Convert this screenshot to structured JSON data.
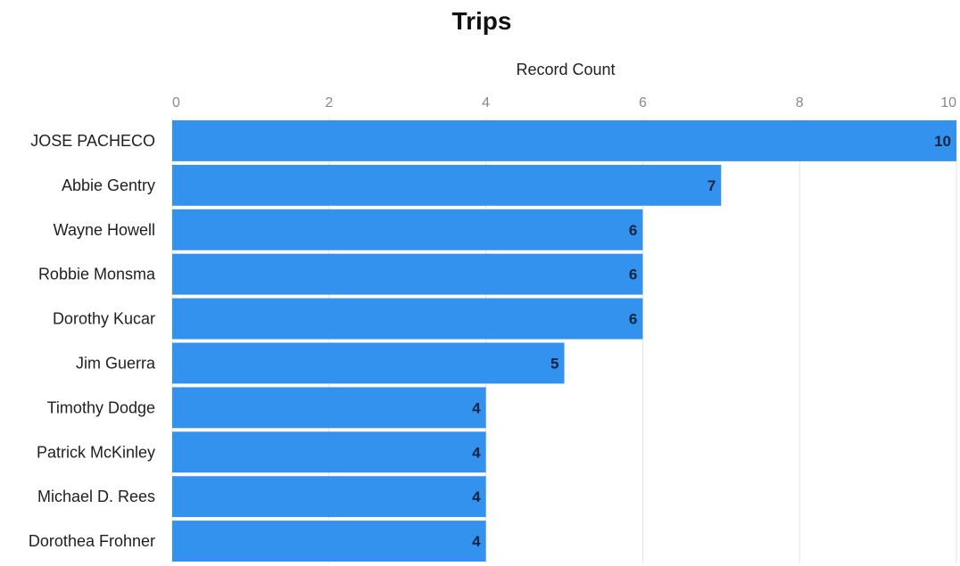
{
  "chart_data": {
    "type": "bar",
    "orientation": "horizontal",
    "title": "Trips",
    "xlabel": "Record Count",
    "ylabel": "",
    "xlim": [
      0,
      10
    ],
    "x_ticks": [
      "0",
      "2",
      "4",
      "6",
      "8",
      "10"
    ],
    "x_tick_values": [
      0,
      2,
      4,
      6,
      8,
      10
    ],
    "grid": true,
    "bar_color": "#3392ee",
    "categories": [
      "JOSE PACHECO",
      "Abbie Gentry",
      "Wayne Howell",
      "Robbie Monsma",
      "Dorothy Kucar",
      "Jim Guerra",
      "Timothy Dodge",
      "Patrick McKinley",
      "Michael D. Rees",
      "Dorothea Frohner"
    ],
    "values": [
      10,
      7,
      6,
      6,
      6,
      5,
      4,
      4,
      4,
      4
    ],
    "data_labels": [
      "10",
      "7",
      "6",
      "6",
      "6",
      "5",
      "4",
      "4",
      "4",
      "4"
    ]
  }
}
